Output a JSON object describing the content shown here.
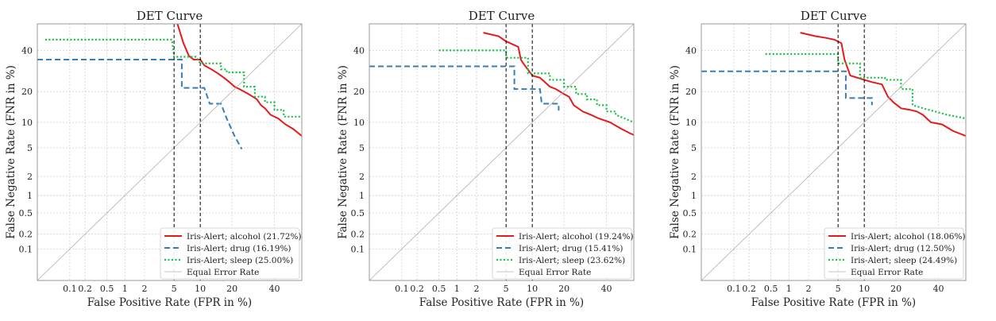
{
  "figure": {
    "layout": "three DET-curve panels in a row"
  },
  "colors": {
    "alcohol": "#e41a1c",
    "drug": "#377eb8",
    "sleep": "#18c042",
    "equal_error": "#b0b0b0",
    "grid": "#d0d0d0",
    "threshold": "#000000"
  },
  "chart_data": [
    {
      "type": "line",
      "title": "DET Curve",
      "xlabel": "False Positive Rate (FPR in %)",
      "ylabel": "False Negative Rate (FNR in %)",
      "x_ticks": [
        "0.1",
        "0.2",
        "0.5",
        "1",
        "2",
        "5",
        "10",
        "20",
        "40"
      ],
      "y_ticks": [
        "0.1",
        "0.2",
        "0.5",
        "1",
        "2",
        "5",
        "10",
        "20",
        "40"
      ],
      "x_range": [
        0.02,
        55
      ],
      "y_range": [
        0.02,
        55
      ],
      "threshold_lines_fpr": [
        5,
        10
      ],
      "grid": true,
      "legend_position": "lower-right",
      "series": [
        {
          "name": "Iris-Alert; alcohol (21.72%)",
          "key": "alcohol",
          "style": "solid",
          "points": [
            [
              5.5,
              55
            ],
            [
              6.5,
              44
            ],
            [
              7.5,
              37
            ],
            [
              8.5,
              35
            ],
            [
              10,
              35
            ],
            [
              11,
              32
            ],
            [
              13,
              30
            ],
            [
              15,
              28
            ],
            [
              17,
              26
            ],
            [
              19,
              24
            ],
            [
              21,
              22
            ],
            [
              23,
              21
            ],
            [
              25,
              20
            ],
            [
              27,
              19
            ],
            [
              29,
              18
            ],
            [
              31,
              17
            ],
            [
              33,
              15
            ],
            [
              35,
              14
            ],
            [
              38,
              12
            ],
            [
              42,
              11
            ],
            [
              46,
              9.5
            ],
            [
              50,
              8.5
            ],
            [
              55,
              7
            ]
          ]
        },
        {
          "name": "Iris-Alert; drug (16.19%)",
          "key": "drug",
          "style": "dashed",
          "points": [
            [
              0.02,
              35
            ],
            [
              5.5,
              35
            ],
            [
              6.2,
              35
            ],
            [
              6.2,
              21.5
            ],
            [
              11,
              21.5
            ],
            [
              12.5,
              15.5
            ],
            [
              15,
              15.5
            ],
            [
              16,
              15.5
            ],
            [
              18,
              11
            ],
            [
              21,
              7
            ],
            [
              24,
              4.8
            ]
          ]
        },
        {
          "name": "Iris-Alert; sleep (25.00%)",
          "key": "sleep",
          "style": "dotted",
          "points": [
            [
              0.03,
              46
            ],
            [
              4.7,
              46
            ],
            [
              5,
              36.5
            ],
            [
              9,
              36.5
            ],
            [
              10,
              33
            ],
            [
              16,
              33
            ],
            [
              16,
              30
            ],
            [
              18,
              30
            ],
            [
              18,
              28.5
            ],
            [
              25,
              28.5
            ],
            [
              25,
              22
            ],
            [
              30,
              22
            ],
            [
              30,
              18
            ],
            [
              35,
              18
            ],
            [
              35,
              16
            ],
            [
              40,
              16
            ],
            [
              40,
              13.5
            ],
            [
              45,
              13.5
            ],
            [
              45,
              11.5
            ],
            [
              55,
              11.5
            ]
          ]
        },
        {
          "name": "Equal Error Rate",
          "key": "equal_error",
          "style": "diagonal",
          "points": [
            [
              0.02,
              0.02
            ],
            [
              55,
              55
            ]
          ]
        }
      ]
    },
    {
      "type": "line",
      "title": "DET Curve",
      "xlabel": "False Positive Rate (FPR in %)",
      "ylabel": "False Negative Rate (FNR in %)",
      "x_ticks": [
        "0.1",
        "0.2",
        "0.5",
        "1",
        "2",
        "5",
        "10",
        "20",
        "40"
      ],
      "y_ticks": [
        "0.1",
        "0.2",
        "0.5",
        "1",
        "2",
        "5",
        "10",
        "20",
        "40"
      ],
      "x_range": [
        0.02,
        55
      ],
      "y_range": [
        0.02,
        55
      ],
      "threshold_lines_fpr": [
        5,
        10
      ],
      "grid": true,
      "legend_position": "lower-right",
      "series": [
        {
          "name": "Iris-Alert; alcohol (19.24%)",
          "key": "alcohol",
          "style": "solid",
          "points": [
            [
              2.5,
              50
            ],
            [
              4,
              48
            ],
            [
              5,
              45
            ],
            [
              7,
              42
            ],
            [
              7.5,
              35
            ],
            [
              8,
              33
            ],
            [
              10,
              27
            ],
            [
              12,
              26
            ],
            [
              15,
              22
            ],
            [
              17,
              21
            ],
            [
              20,
              19
            ],
            [
              22,
              18
            ],
            [
              24,
              15
            ],
            [
              28,
              13
            ],
            [
              32,
              12
            ],
            [
              36,
              11
            ],
            [
              42,
              10
            ],
            [
              48,
              8.5
            ],
            [
              53,
              7.5
            ],
            [
              55,
              7.2
            ]
          ]
        },
        {
          "name": "Iris-Alert; drug (15.41%)",
          "key": "drug",
          "style": "dashed",
          "points": [
            [
              0.02,
              31.5
            ],
            [
              5.5,
              31.5
            ],
            [
              6.3,
              31.5
            ],
            [
              6.3,
              21
            ],
            [
              9,
              21
            ],
            [
              12,
              21
            ],
            [
              12.5,
              15.5
            ],
            [
              16,
              15.5
            ],
            [
              18,
              15.5
            ],
            [
              18,
              13.3
            ]
          ]
        },
        {
          "name": "Iris-Alert; sleep (23.62%)",
          "key": "sleep",
          "style": "dotted",
          "points": [
            [
              0.5,
              40
            ],
            [
              5,
              40
            ],
            [
              5,
              36
            ],
            [
              9,
              36
            ],
            [
              9,
              28
            ],
            [
              15,
              28
            ],
            [
              15,
              25
            ],
            [
              20,
              25
            ],
            [
              20,
              22
            ],
            [
              25,
              22
            ],
            [
              25,
              19
            ],
            [
              30,
              19
            ],
            [
              30,
              17
            ],
            [
              35,
              17
            ],
            [
              35,
              15
            ],
            [
              40,
              15
            ],
            [
              40,
              13
            ],
            [
              45,
              13
            ],
            [
              45,
              12
            ],
            [
              50,
              11
            ],
            [
              55,
              10
            ]
          ]
        },
        {
          "name": "Equal Error Rate",
          "key": "equal_error",
          "style": "diagonal",
          "points": [
            [
              0.02,
              0.02
            ],
            [
              55,
              55
            ]
          ]
        }
      ]
    },
    {
      "type": "line",
      "title": "DET Curve",
      "xlabel": "False Positive Rate (FPR in %)",
      "ylabel": "False Negative Rate (FNR in %)",
      "x_ticks": [
        "0.1",
        "0.2",
        "0.5",
        "1",
        "2",
        "5",
        "10",
        "20",
        "40"
      ],
      "y_ticks": [
        "0.1",
        "0.2",
        "0.5",
        "1",
        "2",
        "5",
        "10",
        "20",
        "40"
      ],
      "x_range": [
        0.02,
        55
      ],
      "y_range": [
        0.02,
        55
      ],
      "threshold_lines_fpr": [
        5,
        10
      ],
      "grid": true,
      "legend_position": "lower-right",
      "series": [
        {
          "name": "Iris-Alert; alcohol (18.06%)",
          "key": "alcohol",
          "style": "solid",
          "points": [
            [
              1.5,
              50
            ],
            [
              2.5,
              48
            ],
            [
              3.5,
              47
            ],
            [
              4.5,
              46
            ],
            [
              5.5,
              44
            ],
            [
              6,
              35
            ],
            [
              7,
              27
            ],
            [
              10,
              25
            ],
            [
              12,
              24
            ],
            [
              15,
              23
            ],
            [
              17,
              18
            ],
            [
              18,
              17
            ],
            [
              19,
              16
            ],
            [
              22,
              14
            ],
            [
              26,
              13.5
            ],
            [
              29,
              13
            ],
            [
              32,
              12
            ],
            [
              36,
              10
            ],
            [
              42,
              9.5
            ],
            [
              48,
              8
            ],
            [
              55,
              7
            ]
          ]
        },
        {
          "name": "Iris-Alert; drug (12.50%)",
          "key": "drug",
          "style": "dashed",
          "points": [
            [
              0.02,
              29
            ],
            [
              5.5,
              29
            ],
            [
              6.2,
              29
            ],
            [
              6.2,
              17.5
            ],
            [
              9,
              17.5
            ],
            [
              12,
              17.5
            ],
            [
              12,
              15
            ]
          ]
        },
        {
          "name": "Iris-Alert; sleep (24.49%)",
          "key": "sleep",
          "style": "dotted",
          "points": [
            [
              0.4,
              38
            ],
            [
              5,
              38
            ],
            [
              5,
              33
            ],
            [
              9,
              33
            ],
            [
              9,
              26
            ],
            [
              16,
              26
            ],
            [
              16,
              25
            ],
            [
              22,
              25
            ],
            [
              22,
              21
            ],
            [
              27,
              21
            ],
            [
              27,
              15
            ],
            [
              35,
              13.5
            ],
            [
              45,
              12
            ],
            [
              55,
              11
            ]
          ]
        },
        {
          "name": "Equal Error Rate",
          "key": "equal_error",
          "style": "diagonal",
          "points": [
            [
              0.02,
              0.02
            ],
            [
              55,
              55
            ]
          ]
        }
      ]
    }
  ]
}
